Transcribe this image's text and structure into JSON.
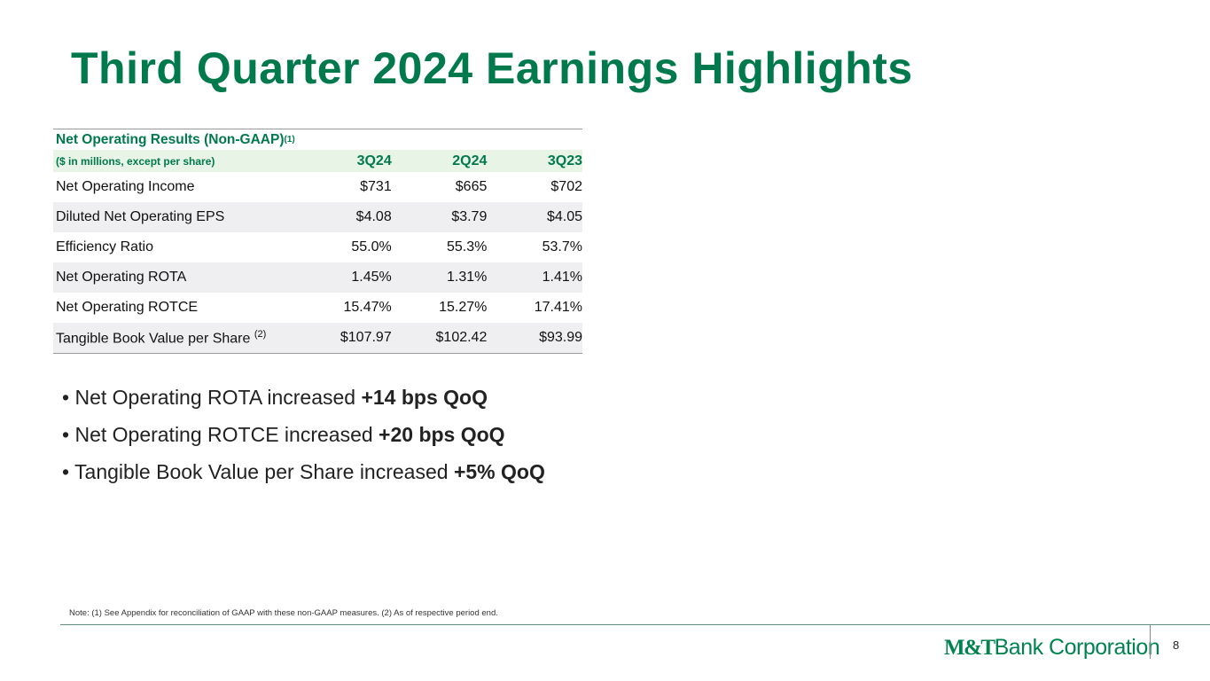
{
  "title": "Third Quarter 2024 Earnings Highlights",
  "table": {
    "title": "Net Operating Results (Non-GAAP)",
    "title_sup": "(1)",
    "unit_label": "($ in millions, except per share)",
    "columns": [
      "3Q24",
      "2Q24",
      "3Q23"
    ],
    "rows": [
      {
        "label": "Net Operating Income",
        "sup": "",
        "values": [
          "$731",
          "$665",
          "$702"
        ]
      },
      {
        "label": "Diluted Net Operating EPS",
        "sup": "",
        "values": [
          "$4.08",
          "$3.79",
          "$4.05"
        ]
      },
      {
        "label": "Efficiency Ratio",
        "sup": "",
        "values": [
          "55.0%",
          "55.3%",
          "53.7%"
        ]
      },
      {
        "label": "Net Operating ROTA",
        "sup": "",
        "values": [
          "1.45%",
          "1.31%",
          "1.41%"
        ]
      },
      {
        "label": "Net Operating ROTCE",
        "sup": "",
        "values": [
          "15.47%",
          "15.27%",
          "17.41%"
        ]
      },
      {
        "label": "Tangible Book Value per Share",
        "sup": "(2)",
        "values": [
          "$107.97",
          "$102.42",
          "$93.99"
        ]
      }
    ]
  },
  "bullets": [
    {
      "text": "Net Operating ROTA increased ",
      "bold": "+14 bps QoQ"
    },
    {
      "text": "Net Operating ROTCE increased ",
      "bold": "+20 bps QoQ"
    },
    {
      "text": "Tangible Book Value per Share increased ",
      "bold": "+5% QoQ"
    }
  ],
  "note": "Note: (1) See Appendix for reconciliation of GAAP with these non-GAAP measures. (2) As of respective period end.",
  "logo": {
    "mark": "M&T",
    "text": "Bank Corporation"
  },
  "page_number": "8",
  "colors": {
    "brand_green": "#007a4d",
    "header_bg": "#e8f5e6",
    "row_gray": "#efeff1"
  }
}
